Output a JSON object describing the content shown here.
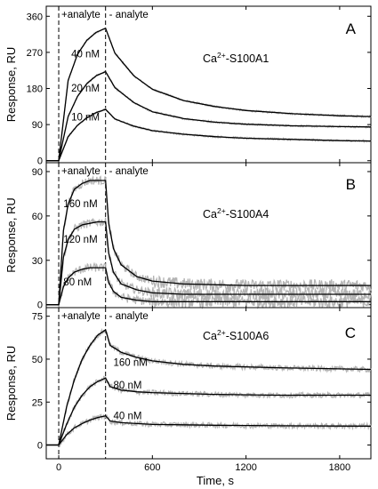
{
  "chart_data": [
    {
      "type": "line",
      "panel": "A",
      "protein": {
        "base": "Ca",
        "sup": "2+",
        "rest": "-S100A1"
      },
      "ylabel": "Response, RU",
      "ylim": [
        -5,
        385
      ],
      "yticks": [
        0,
        90,
        180,
        270,
        360
      ],
      "xlim": [
        -80,
        2000
      ],
      "xticks": [
        0,
        600,
        1200,
        1800
      ],
      "phase_labels": [
        "+analyte",
        "- analyte"
      ],
      "injection_start_s": 0,
      "injection_end_s": 300,
      "series": [
        {
          "name": "40 nM",
          "x": [
            -80,
            0,
            60,
            120,
            180,
            240,
            300,
            360,
            480,
            600,
            800,
            1000,
            1200,
            1500,
            1800,
            2000
          ],
          "y": [
            0,
            0,
            200,
            265,
            300,
            320,
            330,
            268,
            212,
            178,
            150,
            135,
            125,
            117,
            112,
            110
          ]
        },
        {
          "name": "20 nM",
          "x": [
            -80,
            0,
            60,
            120,
            180,
            240,
            300,
            360,
            480,
            600,
            800,
            1000,
            1200,
            1500,
            1800,
            2000
          ],
          "y": [
            0,
            0,
            110,
            160,
            192,
            212,
            222,
            182,
            145,
            122,
            105,
            96,
            91,
            87,
            85,
            84
          ]
        },
        {
          "name": "10 nM",
          "x": [
            -80,
            0,
            60,
            120,
            180,
            240,
            300,
            360,
            480,
            600,
            800,
            1000,
            1200,
            1500,
            1800,
            2000
          ],
          "y": [
            0,
            0,
            60,
            88,
            107,
            120,
            128,
            104,
            86,
            75,
            66,
            60,
            56,
            53,
            50,
            49
          ]
        }
      ]
    },
    {
      "type": "line",
      "panel": "B",
      "protein": {
        "base": "Ca",
        "sup": "2+",
        "rest": "-S100A4"
      },
      "ylabel": "Response, RU",
      "ylim": [
        -2,
        96
      ],
      "yticks": [
        0,
        30,
        60,
        90
      ],
      "xlim": [
        -80,
        2000
      ],
      "xticks": [
        0,
        600,
        1200,
        1800
      ],
      "phase_labels": [
        "+analyte",
        "- analyte"
      ],
      "injection_start_s": 0,
      "injection_end_s": 300,
      "series": [
        {
          "name": "160 nM",
          "x": [
            -80,
            0,
            30,
            60,
            100,
            150,
            200,
            250,
            300,
            320,
            350,
            400,
            500,
            600,
            800,
            1200,
            2000
          ],
          "y": [
            0,
            0,
            50,
            68,
            78,
            82,
            84,
            84,
            84,
            55,
            38,
            27,
            19,
            16,
            14,
            13,
            13
          ]
        },
        {
          "name": "120 nM",
          "x": [
            -80,
            0,
            30,
            60,
            100,
            150,
            200,
            250,
            300,
            320,
            350,
            400,
            500,
            600,
            800,
            1200,
            2000
          ],
          "y": [
            0,
            0,
            32,
            44,
            51,
            54,
            55,
            56,
            56,
            35,
            22,
            14,
            10,
            8,
            7,
            7,
            7
          ]
        },
        {
          "name": "80 nM",
          "x": [
            -80,
            0,
            30,
            60,
            100,
            150,
            200,
            250,
            300,
            320,
            350,
            400,
            500,
            600,
            800,
            1200,
            2000
          ],
          "y": [
            0,
            0,
            12,
            18,
            22,
            24,
            25,
            25,
            25,
            15,
            9,
            5,
            3,
            2,
            2,
            2,
            2
          ]
        }
      ]
    },
    {
      "type": "line",
      "panel": "C",
      "protein": {
        "base": "Ca",
        "sup": "2+",
        "rest": "-S100A6"
      },
      "ylabel": "Response, RU",
      "ylim": [
        -8,
        80
      ],
      "yticks": [
        0,
        25,
        50,
        75
      ],
      "xlim": [
        -80,
        2000
      ],
      "xticks": [
        0,
        600,
        1200,
        1800
      ],
      "xlabel": "Time, s",
      "phase_labels": [
        "+analyte",
        "- analyte"
      ],
      "injection_start_s": 0,
      "injection_end_s": 300,
      "series": [
        {
          "name": "160 nM",
          "x": [
            -80,
            0,
            50,
            100,
            150,
            200,
            250,
            300,
            330,
            400,
            500,
            600,
            800,
            1000,
            1400,
            2000
          ],
          "y": [
            0,
            0,
            22,
            38,
            50,
            58,
            64,
            67,
            58,
            54,
            51,
            49,
            47,
            46,
            45,
            44
          ]
        },
        {
          "name": "80 nM",
          "x": [
            -80,
            0,
            50,
            100,
            150,
            200,
            250,
            300,
            330,
            400,
            500,
            600,
            800,
            1000,
            1400,
            2000
          ],
          "y": [
            0,
            0,
            12,
            22,
            29,
            34,
            37,
            39,
            34,
            32,
            31,
            30.5,
            30,
            29.5,
            29,
            29
          ]
        },
        {
          "name": "40 nM",
          "x": [
            -80,
            0,
            50,
            100,
            150,
            200,
            250,
            300,
            330,
            400,
            500,
            600,
            800,
            1000,
            1400,
            2000
          ],
          "y": [
            0,
            0,
            6,
            10,
            12.5,
            14.5,
            16,
            17,
            14,
            13,
            12.5,
            12,
            11.8,
            11.5,
            11.2,
            11
          ]
        }
      ]
    }
  ],
  "xlabel": "Time, s"
}
